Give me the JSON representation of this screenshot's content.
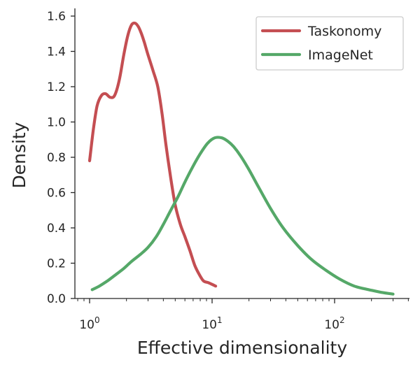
{
  "chart_data": {
    "type": "line",
    "title": "",
    "xlabel": "Effective dimensionality",
    "ylabel": "Density",
    "xscale": "log",
    "xlim": [
      0.72,
      420
    ],
    "ylim": [
      0,
      1.65
    ],
    "grid": false,
    "legend_position": "top-right",
    "y_ticks": [
      {
        "value": 0.0,
        "label": "0.0"
      },
      {
        "value": 0.2,
        "label": "0.2"
      },
      {
        "value": 0.4,
        "label": "0.4"
      },
      {
        "value": 0.6,
        "label": "0.6"
      },
      {
        "value": 0.8,
        "label": "0.8"
      },
      {
        "value": 1.0,
        "label": "1.0"
      },
      {
        "value": 1.2,
        "label": "1.2"
      },
      {
        "value": 1.4,
        "label": "1.4"
      },
      {
        "value": 1.6,
        "label": "1.6"
      }
    ],
    "x_ticks": [
      {
        "value": 1,
        "base": "10",
        "exp": "0"
      },
      {
        "value": 10,
        "base": "10",
        "exp": "1"
      },
      {
        "value": 100,
        "base": "10",
        "exp": "2"
      }
    ],
    "series": [
      {
        "name": "Taskonomy",
        "color": "#c44e52",
        "x": [
          1.0,
          1.07,
          1.15,
          1.25,
          1.35,
          1.47,
          1.6,
          1.75,
          1.9,
          2.05,
          2.2,
          2.35,
          2.5,
          2.65,
          2.8,
          3.0,
          3.3,
          3.6,
          3.9,
          4.2,
          4.6,
          5.0,
          5.5,
          6.0,
          6.6,
          7.2,
          7.8,
          8.5,
          9.3,
          10.0,
          10.7
        ],
        "y": [
          0.78,
          0.95,
          1.09,
          1.15,
          1.16,
          1.14,
          1.15,
          1.24,
          1.38,
          1.49,
          1.55,
          1.56,
          1.54,
          1.5,
          1.45,
          1.38,
          1.29,
          1.2,
          1.05,
          0.87,
          0.68,
          0.53,
          0.42,
          0.35,
          0.27,
          0.19,
          0.14,
          0.1,
          0.09,
          0.08,
          0.07
        ]
      },
      {
        "name": "ImageNet",
        "color": "#55a868",
        "x": [
          1.05,
          1.2,
          1.4,
          1.6,
          1.9,
          2.2,
          2.6,
          3.0,
          3.5,
          4.0,
          4.6,
          5.3,
          6.0,
          7.0,
          8.0,
          9.2,
          10.5,
          12.0,
          13.5,
          15.0,
          17.0,
          20.0,
          24.0,
          30.0,
          38.0,
          50.0,
          65.0,
          85.0,
          110.0,
          145.0,
          190.0,
          240.0,
          300.0
        ],
        "y": [
          0.05,
          0.07,
          0.1,
          0.13,
          0.17,
          0.21,
          0.25,
          0.29,
          0.35,
          0.42,
          0.5,
          0.58,
          0.66,
          0.75,
          0.82,
          0.88,
          0.91,
          0.91,
          0.89,
          0.86,
          0.81,
          0.73,
          0.63,
          0.51,
          0.4,
          0.3,
          0.22,
          0.16,
          0.11,
          0.07,
          0.05,
          0.035,
          0.025
        ]
      }
    ]
  }
}
